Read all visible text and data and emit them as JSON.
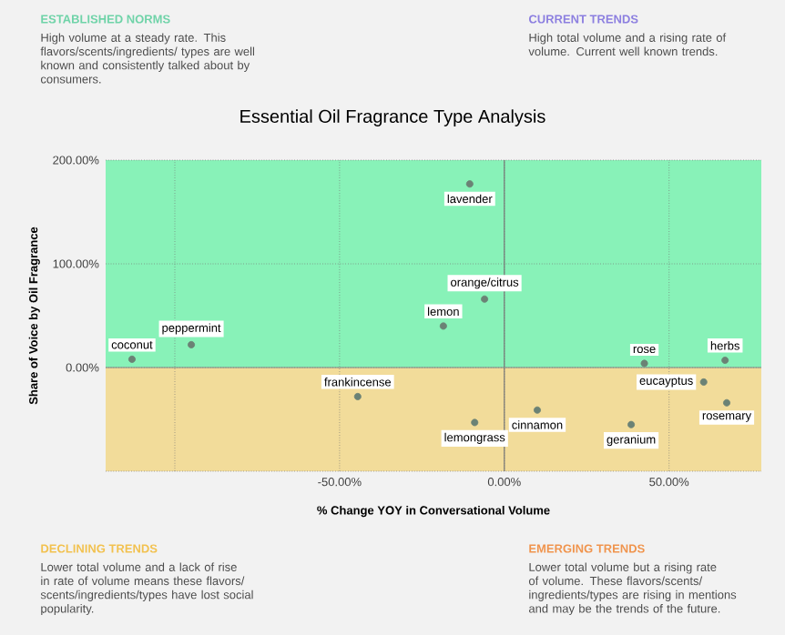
{
  "chart_data": {
    "type": "scatter",
    "title": "Essential Oil Fragrance Type Analysis",
    "xlabel": "% Change YOY in Conversational Volume",
    "ylabel": "Share of Voice by Oil Fragrance",
    "x": [
      -113,
      -95,
      -44.5,
      -10.5,
      -6,
      -18.5,
      -9,
      10,
      38.5,
      42.5,
      60.5,
      67,
      67.5
    ],
    "values": [
      8,
      22,
      -28,
      177,
      66,
      40,
      -53,
      -41,
      -55,
      4,
      -14,
      7,
      -34
    ],
    "color": "#6b8275",
    "grid": true,
    "xlim": [
      -121,
      78
    ],
    "ylim": [
      -100,
      200
    ],
    "xticks": [
      {
        "value": -100,
        "label": null
      },
      {
        "value": -50,
        "label": "-50.00%"
      },
      {
        "value": 0,
        "label": "0.00%"
      },
      {
        "value": 50,
        "label": "50.00%"
      }
    ],
    "yticks": [
      {
        "value": -100,
        "label": null
      },
      {
        "value": 0,
        "label": "0.00%"
      },
      {
        "value": 100,
        "label": "100.00%"
      },
      {
        "value": 200,
        "label": "200.00%"
      }
    ],
    "bands": [
      {
        "axis": "y",
        "from": 0,
        "to": 200,
        "color": "#88f2b8"
      },
      {
        "axis": "y",
        "from": -100,
        "to": 0,
        "color": "#f2dc9a"
      }
    ],
    "ref_lines": [
      {
        "axis": "x",
        "value": 0,
        "color": "#777777"
      },
      {
        "axis": "y",
        "value": 0,
        "color": "#888888"
      }
    ],
    "annotations": [
      {
        "text": "coconut",
        "x": -113,
        "y": 8
      },
      {
        "text": "peppermint",
        "x": -95,
        "y": 22
      },
      {
        "text": "frankincense",
        "x": -44.5,
        "y": -28
      },
      {
        "text": "lavender",
        "x": -10.5,
        "y": 177
      },
      {
        "text": "orange/citrus",
        "x": -6,
        "y": 66
      },
      {
        "text": "lemon",
        "x": -18.5,
        "y": 40
      },
      {
        "text": "lemongrass",
        "x": -9,
        "y": -53
      },
      {
        "text": "cinnamon",
        "x": 10,
        "y": -41
      },
      {
        "text": "geranium",
        "x": 38.5,
        "y": -55
      },
      {
        "text": "rose",
        "x": 42.5,
        "y": 4
      },
      {
        "text": "eucayptus",
        "x": 60.5,
        "y": -14
      },
      {
        "text": "herbs",
        "x": 67,
        "y": 7
      },
      {
        "text": "rosemary",
        "x": 67.5,
        "y": -34
      },
      "ESTABLISHED NORMS",
      "High volume at a steady rate. This flavors/scents/ingredients/ types are well known and consistently talked about by consumers.",
      "CURRENT TRENDS",
      "High total volume and a rising rate of volume. Current well known trends.",
      "DECLINING TRENDS",
      "Lower total volume and a lack of rise in rate of volume means these flavors/ scents/ingredients/types have lost social popularity.",
      "EMERGING TRENDS",
      "Lower total volume but a rising rate of volume. These flavors/scents/ ingredients/types are rising in mentions and may be the trends of the future."
    ]
  }
}
